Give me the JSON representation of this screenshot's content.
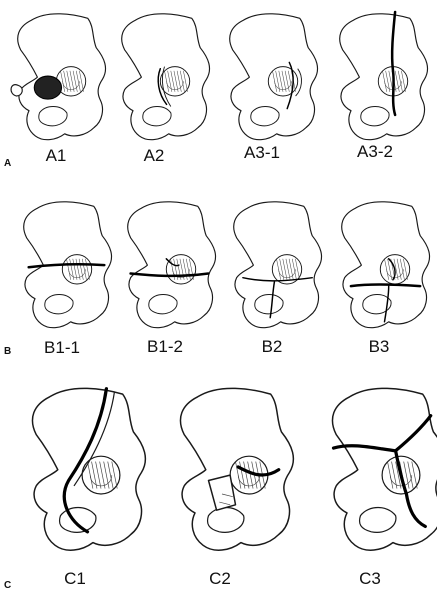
{
  "rows": [
    {
      "letter": "A",
      "labels": [
        "A1",
        "A2",
        "A3-1",
        "A3-2"
      ]
    },
    {
      "letter": "B",
      "labels": [
        "B1-1",
        "B1-2",
        "B2",
        "B3"
      ]
    },
    {
      "letter": "C",
      "labels": [
        "C1",
        "C2",
        "C3"
      ]
    }
  ]
}
